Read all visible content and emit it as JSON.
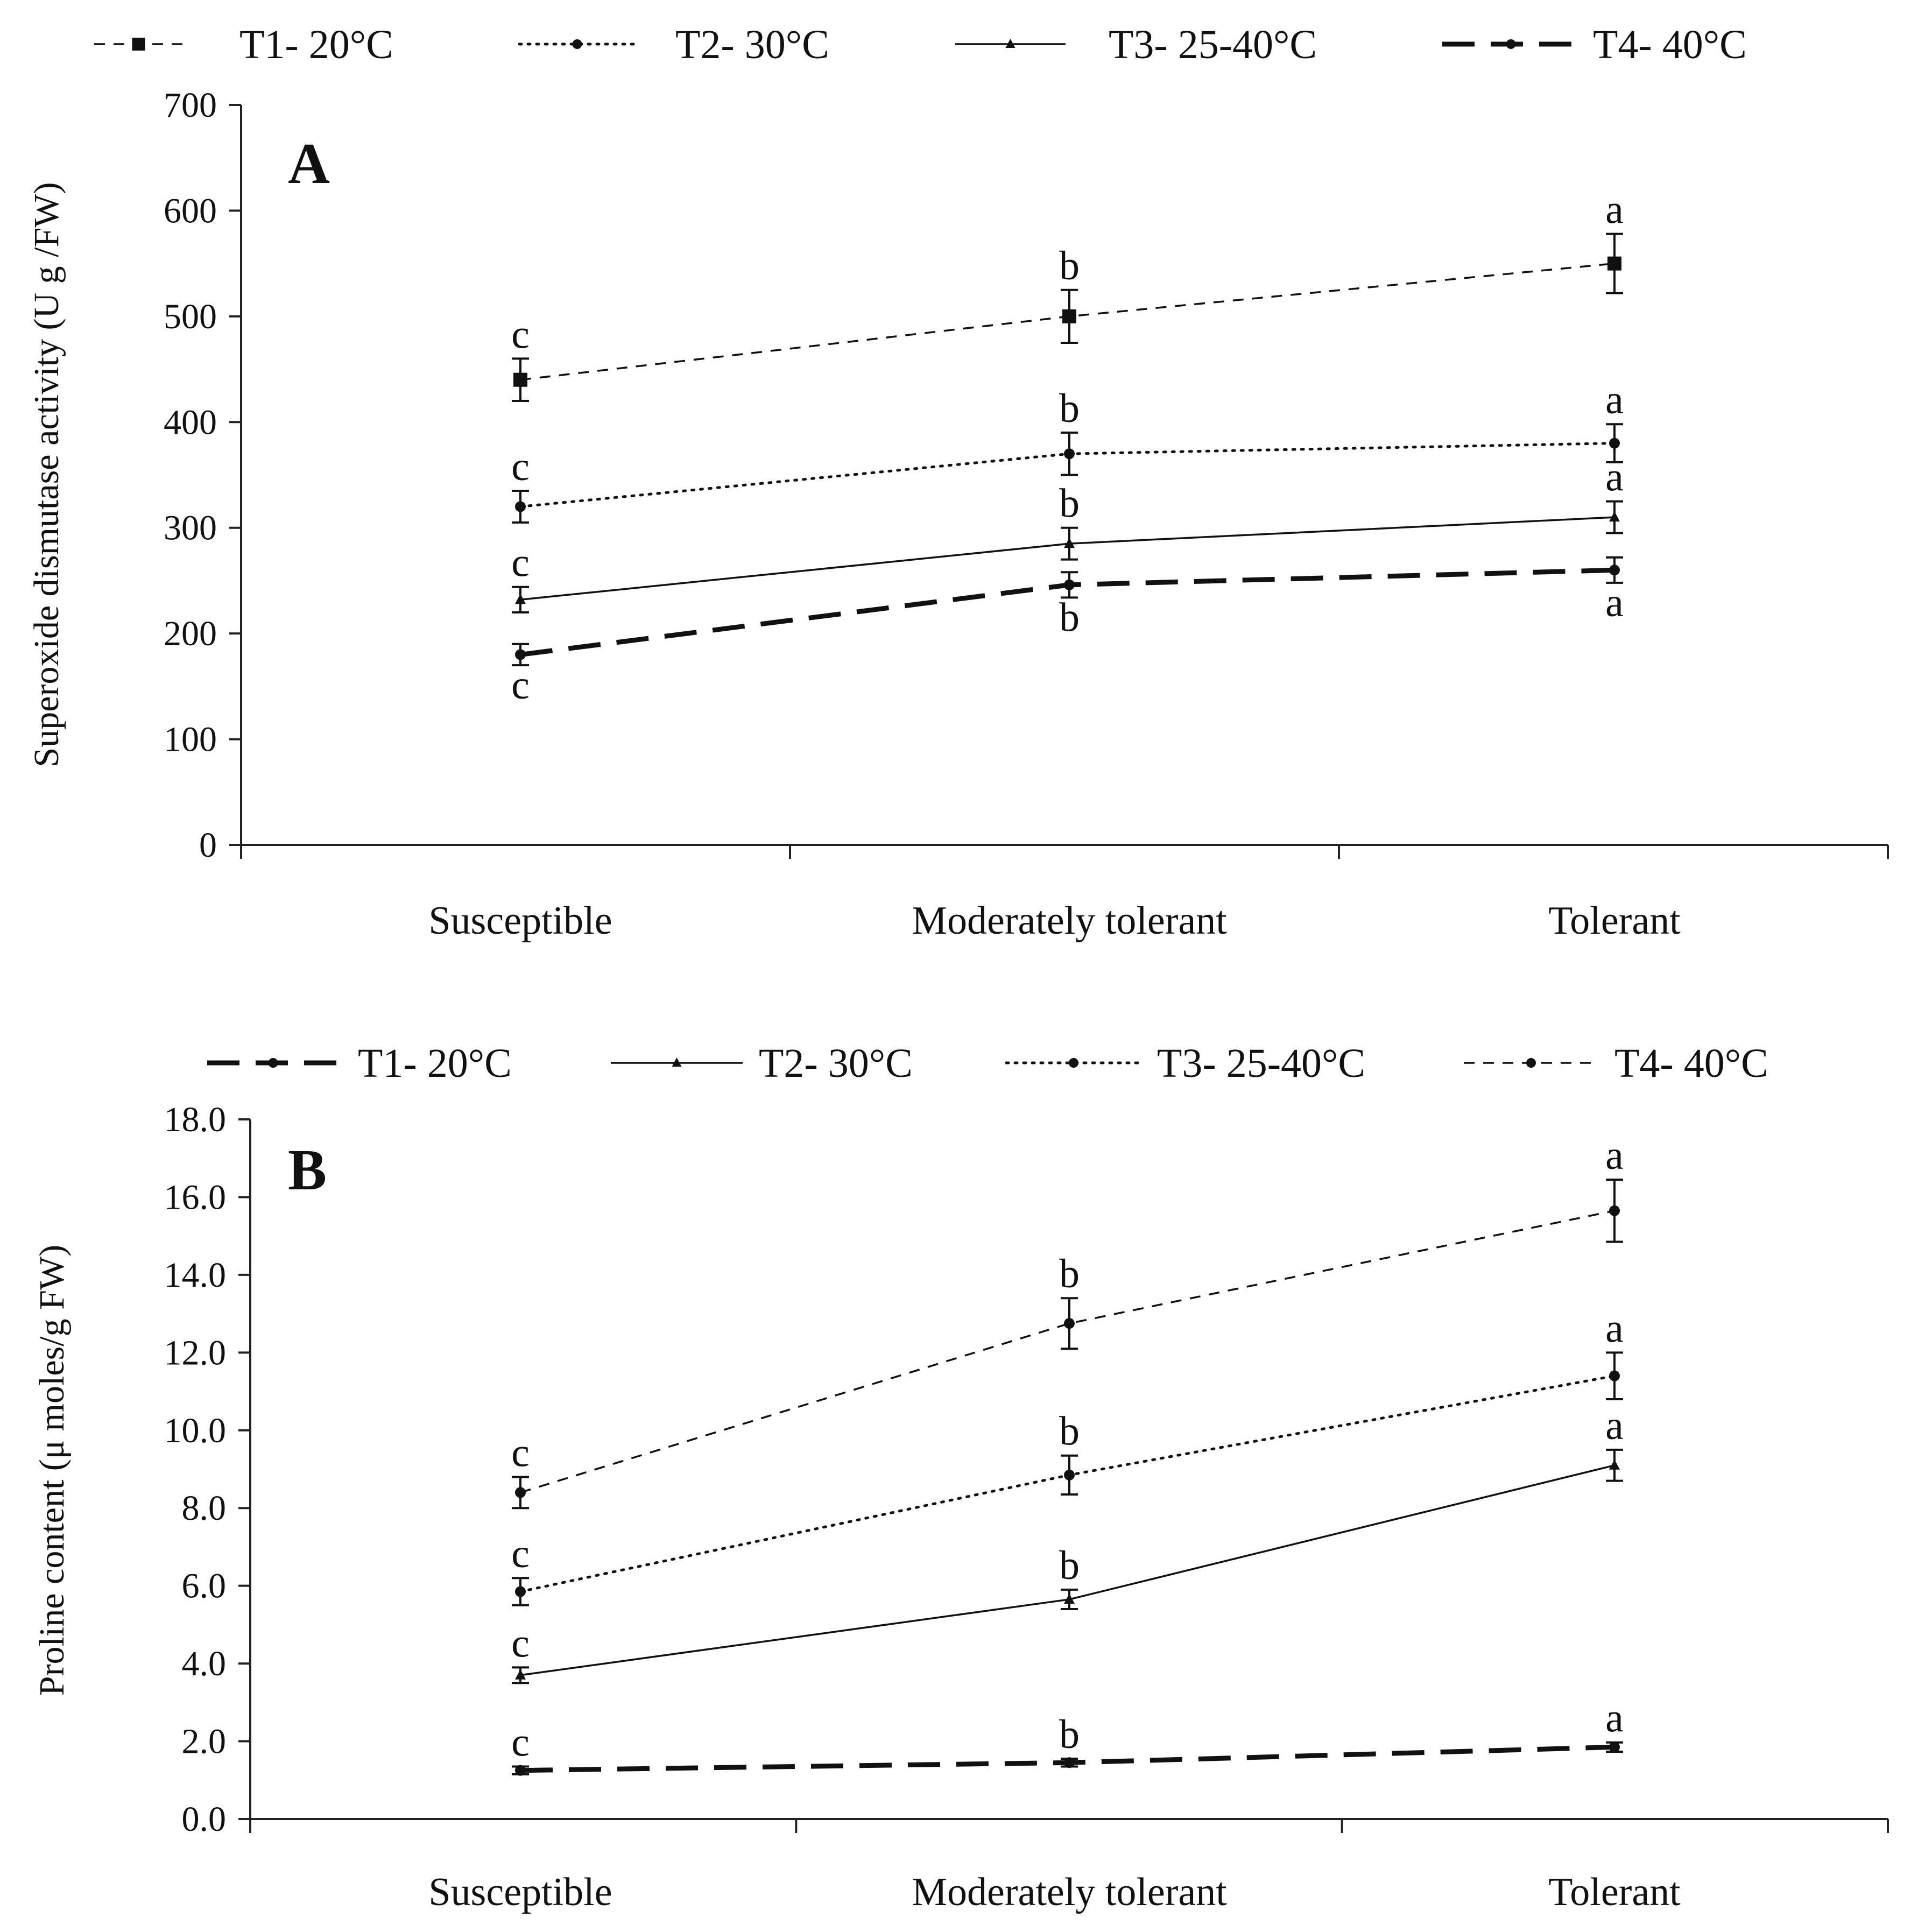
{
  "chart_data": [
    {
      "type": "line",
      "panel_label": "A",
      "ylabel": "Superoxide dismutase activity (U g /FW)",
      "categories": [
        "Susceptible",
        "Moderately tolerant",
        "Tolerant"
      ],
      "ylim": [
        0,
        700
      ],
      "yticks": [
        "0",
        "100",
        "200",
        "300",
        "400",
        "500",
        "600",
        "700"
      ],
      "legend_position": "top",
      "grid": false,
      "series": [
        {
          "name": "T1- 20°C",
          "style": "dashed-thin",
          "marker": "square",
          "values": [
            440,
            500,
            550
          ],
          "errors": [
            20,
            25,
            28
          ],
          "letters": [
            "c",
            "b",
            "a"
          ],
          "letter_pos": [
            "above",
            "above",
            "above"
          ]
        },
        {
          "name": "T2- 30°C",
          "style": "dotted",
          "marker": "dot",
          "values": [
            320,
            370,
            380
          ],
          "errors": [
            15,
            20,
            18
          ],
          "letters": [
            "c",
            "b",
            "a"
          ],
          "letter_pos": [
            "above",
            "above",
            "above"
          ]
        },
        {
          "name": "T3- 25-40°C",
          "style": "solid-thin",
          "marker": "triangle",
          "values": [
            232,
            285,
            310
          ],
          "errors": [
            12,
            15,
            15
          ],
          "letters": [
            "c",
            "b",
            "a"
          ],
          "letter_pos": [
            "above",
            "above",
            "above"
          ]
        },
        {
          "name": "T4- 40°C",
          "style": "dashed-thick",
          "marker": "dot",
          "values": [
            180,
            246,
            260
          ],
          "errors": [
            10,
            12,
            12
          ],
          "letters": [
            "c",
            "b",
            "a"
          ],
          "letter_pos": [
            "below",
            "below",
            "below"
          ]
        }
      ]
    },
    {
      "type": "line",
      "panel_label": "B",
      "ylabel": "Proline content (μ moles/g FW)",
      "categories": [
        "Susceptible",
        "Moderately tolerant",
        "Tolerant"
      ],
      "ylim": [
        0,
        18
      ],
      "yticks": [
        "0.0",
        "2.0",
        "4.0",
        "6.0",
        "8.0",
        "10.0",
        "12.0",
        "14.0",
        "16.0",
        "18.0"
      ],
      "legend_position": "top",
      "grid": false,
      "series": [
        {
          "name": "T1- 20°C",
          "style": "dashed-thick",
          "marker": "dot",
          "values": [
            1.25,
            1.45,
            1.85
          ],
          "errors": [
            0.1,
            0.1,
            0.12
          ],
          "letters": [
            "c",
            "b",
            "a"
          ],
          "letter_pos": [
            "above",
            "above",
            "above"
          ]
        },
        {
          "name": "T2- 30°C",
          "style": "solid-thin",
          "marker": "triangle",
          "values": [
            3.7,
            5.65,
            9.1
          ],
          "errors": [
            0.2,
            0.25,
            0.4
          ],
          "letters": [
            "c",
            "b",
            "a"
          ],
          "letter_pos": [
            "above",
            "above",
            "above"
          ]
        },
        {
          "name": "T3- 25-40°C",
          "style": "dotted",
          "marker": "dot",
          "values": [
            5.85,
            8.85,
            11.4
          ],
          "errors": [
            0.35,
            0.5,
            0.6
          ],
          "letters": [
            "c",
            "b",
            "a"
          ],
          "letter_pos": [
            "above",
            "above",
            "above"
          ]
        },
        {
          "name": "T4- 40°C",
          "style": "dashed-thin",
          "marker": "dot",
          "values": [
            8.4,
            12.75,
            15.65
          ],
          "errors": [
            0.4,
            0.65,
            0.8
          ],
          "letters": [
            "c",
            "b",
            "a"
          ],
          "letter_pos": [
            "above",
            "above",
            "above"
          ]
        }
      ]
    }
  ]
}
